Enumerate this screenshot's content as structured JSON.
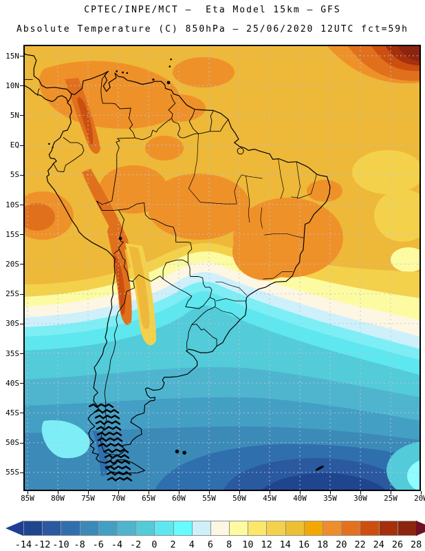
{
  "title": {
    "line1": "CPTEC/INPE/MCT –  Eta Model 15km – GFS",
    "line2": "Absolute Temperature (C) 850hPa – 25/06/2020 12UTC fct=59h"
  },
  "axes": {
    "lat_ticks": [
      "15N",
      "10N",
      "5N",
      "EQ",
      "5S",
      "10S",
      "15S",
      "20S",
      "25S",
      "30S",
      "35S",
      "40S",
      "45S",
      "50S",
      "55S"
    ],
    "lon_ticks": [
      "85W",
      "80W",
      "75W",
      "70W",
      "65W",
      "60W",
      "55W",
      "50W",
      "45W",
      "40W",
      "35W",
      "30W",
      "25W",
      "20W"
    ]
  },
  "map": {
    "grid_color": "#b9c4d6",
    "frame_color": "#000000",
    "coastline_color": "#000000"
  },
  "colorbar": {
    "tick_labels": [
      "-14",
      "-12",
      "-10",
      "-8",
      "-6",
      "-4",
      "-2",
      "0",
      "2",
      "4",
      "6",
      "8",
      "10",
      "12",
      "14",
      "16",
      "18",
      "20",
      "22",
      "24",
      "26",
      "28"
    ],
    "cell_colors": [
      "#20458f",
      "#2a59a0",
      "#2f6fae",
      "#3c8ab8",
      "#449fc4",
      "#4fb5cf",
      "#54cbd8",
      "#5ee7ee",
      "#66fcff",
      "#cdf0fb",
      "#fdf6e3",
      "#fdfba1",
      "#fce76d",
      "#f4d14b",
      "#ecc033",
      "#f2a800",
      "#ee8d2e",
      "#e4711d",
      "#cc4f10",
      "#a5300b",
      "#8c2510"
    ],
    "under_arrow_color": "#1e3f94",
    "over_arrow_color": "#6e1123",
    "outline_color": "#909090"
  },
  "chart_data": {
    "type": "heatmap",
    "title": "CPTEC/INPE/MCT – Eta Model 15km – GFS",
    "subtitle": "Absolute Temperature (C) 850hPa – 25/06/2020 12UTC fct=59h",
    "variable": "Absolute Temperature",
    "units": "C",
    "level": "850hPa",
    "valid_time": "25/06/2020 12UTC",
    "forecast": "fct=59h",
    "x_ticks": [
      "85W",
      "80W",
      "75W",
      "70W",
      "65W",
      "60W",
      "55W",
      "50W",
      "45W",
      "40W",
      "35W",
      "30W",
      "25W",
      "20W"
    ],
    "y_ticks": [
      "15N",
      "10N",
      "5N",
      "EQ",
      "5S",
      "10S",
      "15S",
      "20S",
      "25S",
      "30S",
      "35S",
      "40S",
      "45S",
      "50S",
      "55S"
    ],
    "colorbar_values": [
      -14,
      -12,
      -10,
      -8,
      -6,
      -4,
      -2,
      0,
      2,
      4,
      6,
      8,
      10,
      12,
      14,
      16,
      18,
      20,
      22,
      24,
      26,
      28
    ],
    "colorbar_colors": [
      "#20458f",
      "#2a59a0",
      "#2f6fae",
      "#3c8ab8",
      "#449fc4",
      "#4fb5cf",
      "#54cbd8",
      "#5ee7ee",
      "#66fcff",
      "#cdf0fb",
      "#fdf6e3",
      "#fdfba1",
      "#fce76d",
      "#f4d14b",
      "#ecc033",
      "#f2a800",
      "#ee8d2e",
      "#e4711d",
      "#cc4f10",
      "#a5300b",
      "#8c2510"
    ],
    "pattern_summary": "Warm air 14-28C over northern South America and tropical Atlantic with maximum >26C at far northeast corner and along the central Andes; sharp diagonal cold front near 25-35S with a cold tongue into Paraguay; cold air -14 to 4C over Patagonia and the South Atlantic, coldest (< -10C) southeast of Argentina."
  }
}
